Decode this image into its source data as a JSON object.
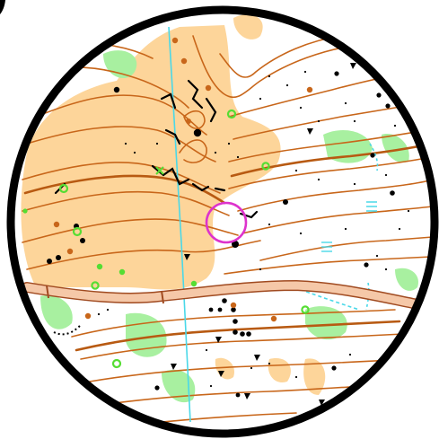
{
  "map": {
    "kind": "orienteering-map-circle-crop",
    "colors": {
      "open_land": "#fdd59a",
      "vegetation": "#a8f0a0",
      "contour": "#c8661a",
      "rock_black": "#000000",
      "water_cyan": "#4ad8e8",
      "road_fill": "#f5c8a8",
      "road_casing": "#a04a20",
      "control_circle": "#dd33cc",
      "green_feature": "#55dd33",
      "frame": "#000000"
    },
    "features": {
      "control_circle_count": 1,
      "road": "paved-road-horizontal",
      "stream": "north-south-stream"
    }
  }
}
